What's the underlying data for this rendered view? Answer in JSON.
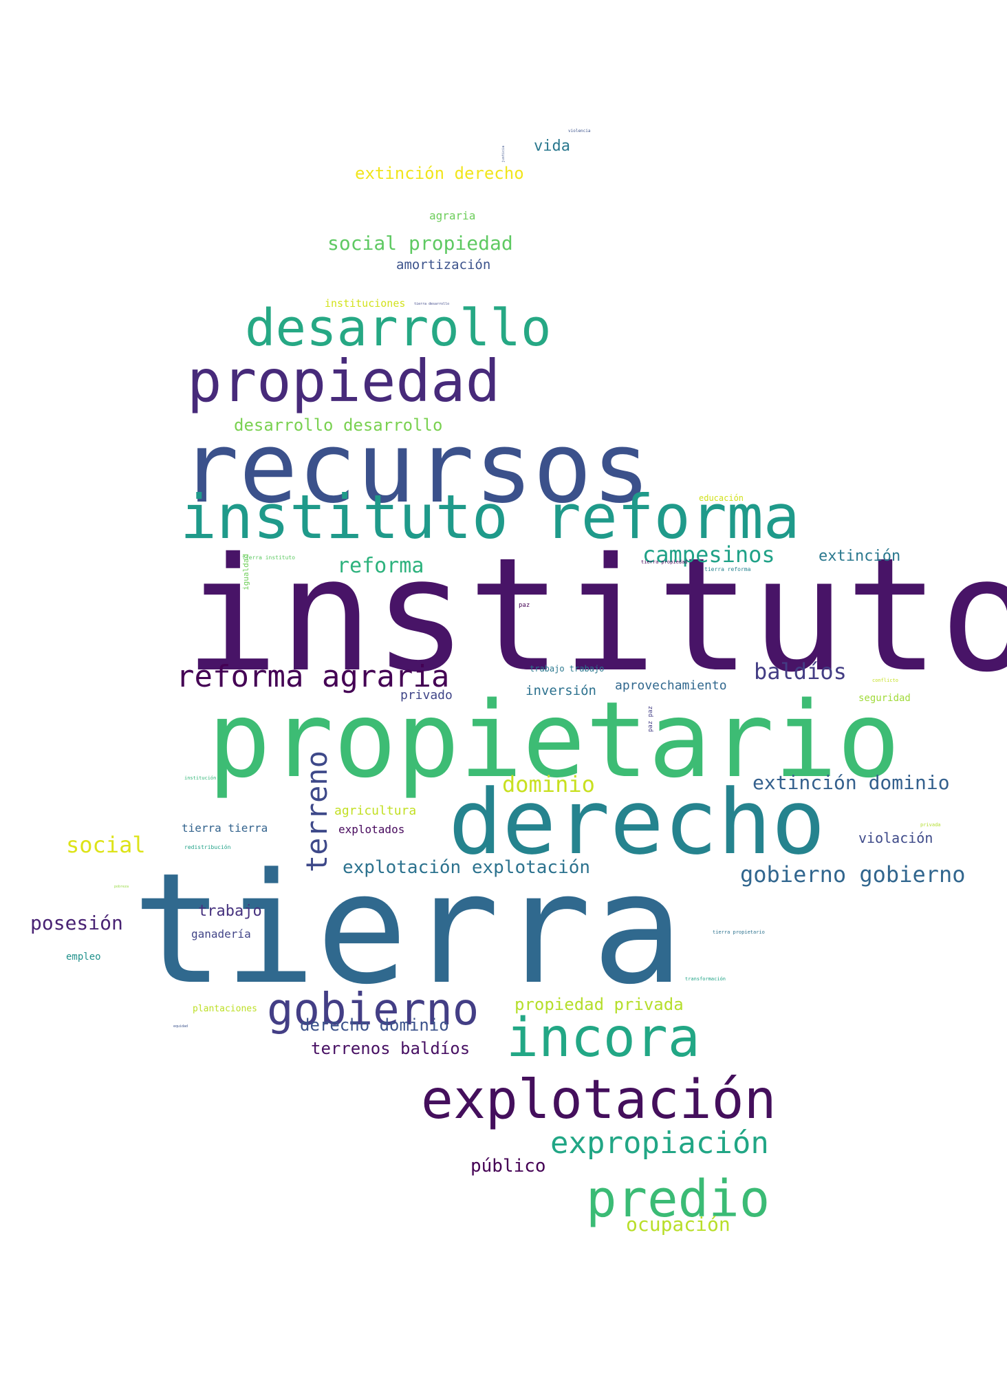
{
  "colors": {
    "background": "#ffffff",
    "palette": "viridis"
  },
  "words": [
    {
      "text": "instituto",
      "color": "#481467"
    },
    {
      "text": "tierra",
      "color": "#30698e"
    },
    {
      "text": "propietario",
      "color": "#3dbc74"
    },
    {
      "text": "recursos",
      "color": "#3b518b"
    },
    {
      "text": "derecho",
      "color": "#25838e"
    },
    {
      "text": "instituto reforma",
      "color": "#1f9a8a"
    },
    {
      "text": "propiedad",
      "color": "#472a7a"
    },
    {
      "text": "desarrollo",
      "color": "#26a884"
    },
    {
      "text": "explotación",
      "color": "#440f5c"
    },
    {
      "text": "incora",
      "color": "#22a785"
    },
    {
      "text": "predio",
      "color": "#3bbb75"
    },
    {
      "text": "gobierno",
      "color": "#433e85"
    },
    {
      "text": "reforma agraria",
      "color": "#440154"
    },
    {
      "text": "expropiación",
      "color": "#21a685"
    },
    {
      "text": "campesinos",
      "color": "#1fa187"
    },
    {
      "text": "terreno",
      "color": "#3e4989"
    },
    {
      "text": "baldíos",
      "color": "#433d84"
    },
    {
      "text": "gobierno gobierno",
      "color": "#31668e"
    },
    {
      "text": "social",
      "color": "#dde318"
    },
    {
      "text": "extinción dominio",
      "color": "#34608d"
    },
    {
      "text": "posesión",
      "color": "#482273"
    },
    {
      "text": "dominio",
      "color": "#c8e020"
    },
    {
      "text": "reforma",
      "color": "#2db27d"
    },
    {
      "text": "explotación explotación",
      "color": "#2c728e"
    },
    {
      "text": "social propiedad",
      "color": "#5ec962"
    },
    {
      "text": "extinción derecho",
      "color": "#f1e51d"
    },
    {
      "text": "desarrollo desarrollo",
      "color": "#7ad151"
    },
    {
      "text": "propiedad privada",
      "color": "#b5de2b"
    },
    {
      "text": "ocupación",
      "color": "#b8de29"
    },
    {
      "text": "derecho dominio",
      "color": "#3b528b"
    },
    {
      "text": "terrenos baldíos",
      "color": "#471063"
    },
    {
      "text": "público",
      "color": "#440154"
    },
    {
      "text": "trabajo",
      "color": "#46327e"
    },
    {
      "text": "extinción",
      "color": "#2a788e"
    },
    {
      "text": "vida",
      "color": "#2a788e"
    },
    {
      "text": "violación",
      "color": "#3e4a89"
    },
    {
      "text": "amortización",
      "color": "#3b528b"
    },
    {
      "text": "inversión",
      "color": "#2c718e"
    },
    {
      "text": "aprovechamiento",
      "color": "#31688e"
    },
    {
      "text": "agricultura",
      "color": "#c2df23"
    },
    {
      "text": "privado",
      "color": "#404688"
    },
    {
      "text": "tierra tierra",
      "color": "#33638d"
    },
    {
      "text": "explotados",
      "color": "#46085c"
    },
    {
      "text": "ganadería",
      "color": "#414487"
    },
    {
      "text": "agraria",
      "color": "#6ccd5a"
    },
    {
      "text": "instituciones",
      "color": "#d2e21b"
    },
    {
      "text": "empleo",
      "color": "#21918c"
    },
    {
      "text": "plantaciones",
      "color": "#bddf26"
    },
    {
      "text": "seguridad",
      "color": "#a0da39"
    },
    {
      "text": "igualdad",
      "color": "#6ece58"
    },
    {
      "text": "educación",
      "color": "#d0e11c"
    },
    {
      "text": "trabajo trabajo",
      "color": "#2a778e"
    },
    {
      "text": "paz paz",
      "color": "#433e85"
    },
    {
      "text": "tierra instituto",
      "color": "#5ec962"
    },
    {
      "text": "tierra reforma",
      "color": "#26828e"
    },
    {
      "text": "tierra propiedad",
      "color": "#440154"
    },
    {
      "text": "paz",
      "color": "#440154"
    },
    {
      "text": "redistribución",
      "color": "#1fa187"
    },
    {
      "text": "institución",
      "color": "#35b779"
    },
    {
      "text": "tierra propietario",
      "color": "#2c728e"
    },
    {
      "text": "transformación",
      "color": "#20a386"
    },
    {
      "text": "tierra desarrollo",
      "color": "#3f4889"
    },
    {
      "text": "violencia",
      "color": "#3b528b"
    },
    {
      "text": "conflicto",
      "color": "#c5e021"
    },
    {
      "text": "privada",
      "color": "#b2dd2d"
    },
    {
      "text": "pobreza",
      "color": "#95d840"
    },
    {
      "text": "equidad",
      "color": "#3b528b"
    },
    {
      "text": "justicia",
      "color": "#3b528b"
    }
  ]
}
